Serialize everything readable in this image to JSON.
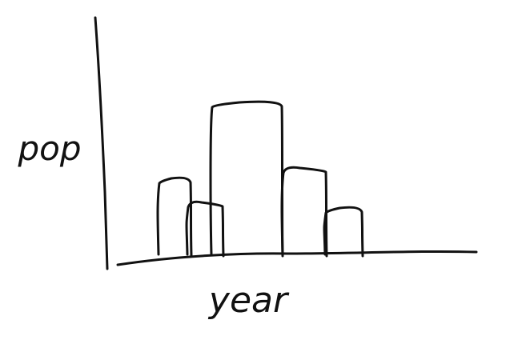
{
  "chart_data": {
    "type": "bar",
    "style": "hand-drawn sketch",
    "xlabel": "year",
    "ylabel": "pop",
    "series": [
      {
        "values": [
          95,
          65,
          190,
          108,
          58
        ]
      }
    ],
    "ylim": [
      0,
      300
    ],
    "grid": false,
    "legend": "none",
    "ink_color": "#111111"
  }
}
